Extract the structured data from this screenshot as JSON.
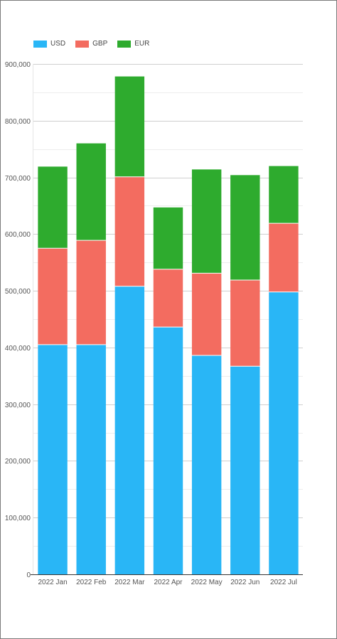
{
  "chart_data": {
    "type": "bar",
    "stacked": true,
    "categories": [
      "2022 Jan",
      "2022 Feb",
      "2022 Mar",
      "2022 Apr",
      "2022 May",
      "2022 Jun",
      "2022 Jul"
    ],
    "series": [
      {
        "name": "USD",
        "color": "#29b6f6",
        "values": [
          405000,
          405000,
          508000,
          436000,
          386000,
          367000,
          498000
        ]
      },
      {
        "name": "GBP",
        "color": "#f36c60",
        "values": [
          170000,
          184000,
          193000,
          102000,
          145000,
          152000,
          121000
        ]
      },
      {
        "name": "EUR",
        "color": "#2eab2e",
        "values": [
          144000,
          171000,
          177000,
          109000,
          183000,
          185000,
          101000
        ]
      }
    ],
    "yticks": [
      0,
      100000,
      200000,
      300000,
      400000,
      500000,
      600000,
      700000,
      800000,
      900000
    ],
    "ytick_labels": [
      "0",
      "100,000",
      "200,000",
      "300,000",
      "400,000",
      "500,000",
      "600,000",
      "700,000",
      "800,000",
      "900,000"
    ],
    "ylim": [
      0,
      900000
    ],
    "grid": true,
    "legend_position": "top-left"
  }
}
